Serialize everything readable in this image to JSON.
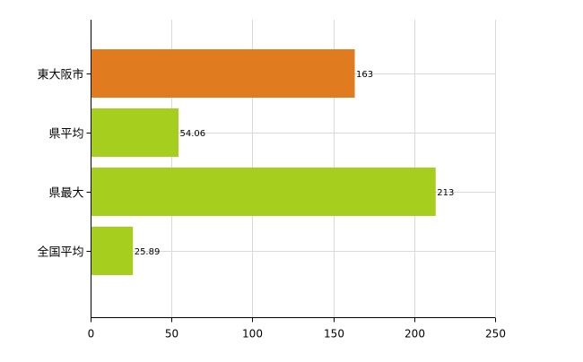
{
  "chart_data": {
    "type": "bar",
    "orientation": "horizontal",
    "categories": [
      "東大阪市",
      "県平均",
      "県最大",
      "全国平均"
    ],
    "values": [
      163,
      54.06,
      213,
      25.89
    ],
    "value_labels": [
      "163",
      "54.06",
      "213",
      "25.89"
    ],
    "bar_colors": [
      "#E07B1F",
      "#A6CE1F",
      "#A6CE1F",
      "#A6CE1F"
    ],
    "xlim": [
      0,
      250
    ],
    "x_ticks": [
      0,
      50,
      100,
      150,
      200,
      250
    ],
    "x_tick_labels": [
      "0",
      "50",
      "100",
      "150",
      "200",
      "250"
    ],
    "grid": true,
    "title": "",
    "xlabel": "",
    "ylabel": ""
  },
  "colors": {
    "gridline": "#d9d9d9",
    "axis": "#000000",
    "text": "#000000"
  }
}
